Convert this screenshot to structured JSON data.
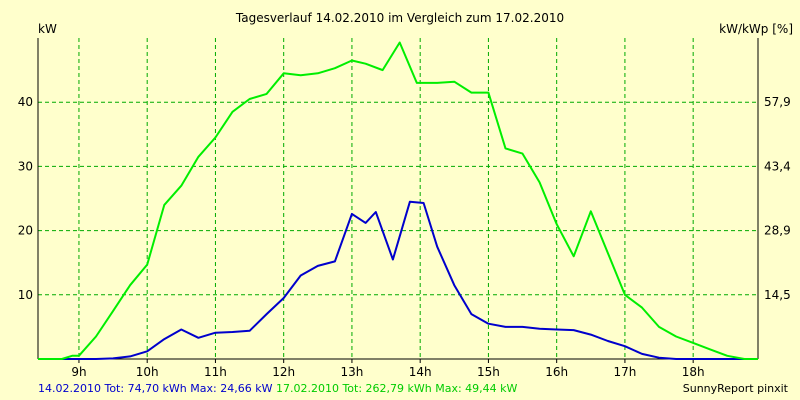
{
  "chart_data": {
    "type": "line",
    "title": "Tagesverlauf 14.02.2010 im Vergleich zum 17.02.2010",
    "ylabel_left": "kW",
    "ylabel_right": "kW/kWp [%]",
    "ylim": [
      0,
      50
    ],
    "xlim": [
      8.4,
      18.95
    ],
    "x_ticks": [
      9,
      10,
      11,
      12,
      13,
      14,
      15,
      16,
      17,
      18
    ],
    "x_tick_labels": [
      "9h",
      "10h",
      "11h",
      "12h",
      "13h",
      "14h",
      "15h",
      "16h",
      "17h",
      "18h"
    ],
    "y_ticks_left": [
      10,
      20,
      30,
      40
    ],
    "y_ticks_right": [
      {
        "value": 10,
        "label": "14,5"
      },
      {
        "value": 20,
        "label": "28,9"
      },
      {
        "value": 30,
        "label": "43,4"
      },
      {
        "value": 40,
        "label": "57,9"
      }
    ],
    "grid": true,
    "series": [
      {
        "name": "14.02.2010",
        "color": "#0000cc",
        "x": [
          8.4,
          8.75,
          9.0,
          9.25,
          9.5,
          9.75,
          10.0,
          10.25,
          10.5,
          10.75,
          11.0,
          11.25,
          11.5,
          11.75,
          12.0,
          12.25,
          12.5,
          12.75,
          13.0,
          13.2,
          13.35,
          13.6,
          13.85,
          14.05,
          14.25,
          14.5,
          14.75,
          15.0,
          15.25,
          15.5,
          15.75,
          16.0,
          16.25,
          16.5,
          16.75,
          17.0,
          17.25,
          17.5,
          17.75,
          18.0,
          18.25,
          18.5,
          18.75,
          18.95
        ],
        "y": [
          0,
          0,
          0,
          0,
          0.1,
          0.4,
          1.2,
          3.1,
          4.6,
          3.3,
          4.1,
          4.2,
          4.4,
          7.0,
          9.5,
          13.0,
          14.5,
          15.2,
          22.6,
          21.2,
          22.9,
          15.5,
          24.5,
          24.3,
          17.5,
          11.5,
          7.0,
          5.5,
          5.0,
          5.0,
          4.7,
          4.6,
          4.5,
          3.8,
          2.8,
          2.0,
          0.8,
          0.2,
          0,
          0,
          0,
          0,
          0,
          0
        ]
      },
      {
        "name": "17.02.2010",
        "color": "#00ee00",
        "x": [
          8.4,
          8.75,
          8.9,
          9.0,
          9.25,
          9.5,
          9.75,
          10.0,
          10.25,
          10.5,
          10.75,
          11.0,
          11.25,
          11.5,
          11.75,
          12.0,
          12.25,
          12.5,
          12.75,
          13.0,
          13.2,
          13.45,
          13.7,
          13.95,
          14.25,
          14.5,
          14.75,
          15.0,
          15.25,
          15.5,
          15.75,
          16.0,
          16.25,
          16.5,
          16.75,
          17.0,
          17.25,
          17.5,
          17.75,
          18.0,
          18.25,
          18.5,
          18.75,
          18.95
        ],
        "y": [
          0,
          0,
          0.5,
          0.5,
          3.5,
          7.5,
          11.5,
          14.7,
          24.0,
          27.0,
          31.5,
          34.5,
          38.5,
          40.5,
          41.3,
          44.5,
          44.2,
          44.5,
          45.3,
          46.5,
          46.0,
          45.0,
          49.3,
          43.0,
          43.0,
          43.2,
          41.5,
          41.5,
          32.8,
          32.0,
          27.5,
          21.0,
          16.0,
          23.0,
          16.5,
          10.0,
          8.0,
          5.0,
          3.5,
          2.5,
          1.5,
          0.5,
          0,
          0
        ]
      }
    ]
  },
  "footer": {
    "series1_summary": "14.02.2010 Tot: 74,70 kWh Max: 24,66 kW",
    "series2_summary": "17.02.2010 Tot: 262,79 kWh Max: 49,44 kW",
    "brand": "SunnyReport pinxit"
  }
}
